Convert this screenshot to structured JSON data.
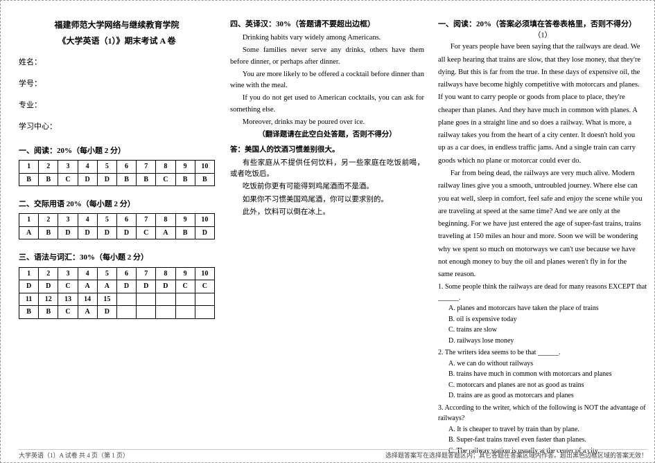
{
  "header": {
    "institution": "福建师范大学网络与继续教育学院",
    "exam_title": "《大学英语（1）》期末考试 A 卷"
  },
  "student_info": {
    "name_label": "姓名：",
    "id_label": "学号：",
    "major_label": "专业：",
    "center_label": "学习中心："
  },
  "section1": {
    "label": "一、阅读：20%（每小题 2 分）",
    "nums": [
      "1",
      "2",
      "3",
      "4",
      "5",
      "6",
      "7",
      "8",
      "9",
      "10"
    ],
    "answers": [
      "B",
      "B",
      "C",
      "D",
      "D",
      "B",
      "B",
      "C",
      "B",
      "B"
    ]
  },
  "section2": {
    "label": "二、交际用语 20%（每小题 2 分）",
    "nums": [
      "1",
      "2",
      "3",
      "4",
      "5",
      "6",
      "7",
      "8",
      "9",
      "10"
    ],
    "answers": [
      "A",
      "B",
      "D",
      "D",
      "D",
      "D",
      "C",
      "A",
      "B",
      "D"
    ]
  },
  "section3": {
    "label": "三、语法与词汇：30%（每小题 2 分）",
    "row1_nums": [
      "1",
      "2",
      "3",
      "4",
      "5",
      "6",
      "7",
      "8",
      "9",
      "10"
    ],
    "row1_ans": [
      "D",
      "D",
      "C",
      "A",
      "A",
      "D",
      "D",
      "D",
      "C",
      "C"
    ],
    "row2_nums": [
      "11",
      "12",
      "13",
      "14",
      "15",
      "",
      "",
      "",
      "",
      ""
    ],
    "row2_ans": [
      "B",
      "B",
      "C",
      "A",
      "D",
      "",
      "",
      "",
      "",
      ""
    ]
  },
  "section4": {
    "label": "四、英译汉：30%（答题请不要超出边框）",
    "english": [
      "Drinking habits vary widely among Americans.",
      "Some families never serve any drinks, others have them before dinner, or perhaps after dinner.",
      "You are more likely to be offered a cocktail before dinner than wine with the meal.",
      "If you do not get used to American cocktails, you can ask for something else.",
      "Moreover, drinks may be poured over ice."
    ],
    "instr": "（翻译题请在此空白处答题，否则不得分）",
    "ans_lead": "答：美国人的饮酒习惯差别很大。",
    "ans_lines": [
      "有些家庭从不提供任何饮料，另一些家庭在吃饭前喝，或者吃饭后。",
      "吃饭前你更有可能得到鸡尾酒而不是酒。",
      "如果你不习惯美国鸡尾酒，你可以要求别的。",
      "此外，饮料可以倒在冰上。"
    ]
  },
  "reading": {
    "heading": "一、阅读：20%（答案必须填在答卷表格里，否则不得分）",
    "sub": "（1）",
    "passage": [
      "For years people have been saying that the railways are dead. We",
      "all keep hearing that trains are slow, that they lose money, that they're",
      "dying. But this is far from the true. In these days of expensive oil, the",
      "railways have become highly competitive with motorcars and planes.",
      "If you want to carry people or goods from place to place, they're",
      "cheaper than planes. And they have much in common with planes. A",
      "plane goes in a straight line and so does a railway. What is more, a",
      "railway takes you from the heart of a city center. It doesn't hold you",
      "up as a car does, in endless traffic jams. And a single train can carry",
      "goods which no plane or motorcar could ever do."
    ],
    "passage2": [
      "Far from being dead, the railways are very much alive. Modern",
      "railway lines give you a smooth, untroubled journey. Where else can",
      "you eat well, sleep in comfort, feel safe and enjoy the scene while you",
      "are traveling at speed at the same time? And we are only at the",
      "beginning. For we have just entered the age of super-fast trains, trains",
      "traveling at 150 miles an hour and more. Soon we will be wondering",
      "why we spent so much on motorways we can't use because we have",
      "not enough money to buy the oil and planes weren't fly in for the",
      "same reason."
    ],
    "q1": "1. Some people think the railways are dead for many reasons EXCEPT that ______.",
    "q1_opts": [
      "A. planes and motorcars have taken the place of trains",
      "B. oil is expensive today",
      "C. trains are slow",
      "D. railways lose money"
    ],
    "q2": "2. The writers idea seems to be that ______.",
    "q2_opts": [
      "A. we can do without railways",
      "B. trains have much in common with motorcars and planes",
      "C. motorcars and planes are not as good as trains",
      "D. trains are as good as motorcars and planes"
    ],
    "q3": "3. According to the writer, which of the following is NOT the advantage of railways?",
    "q3_opts": [
      "A. It is cheaper to travel by train than by plane.",
      "B. Super-fast trains travel even faster than planes.",
      "C. The railway station is usually at the center of a city."
    ]
  },
  "footer": {
    "left": "大学英语（1）A  试卷  共 4 页（第 1 页）",
    "right": "选择题答案写在选择题答题区内；其它各题在答案区域内作答。超出黑色边框区域的答案无效！"
  }
}
